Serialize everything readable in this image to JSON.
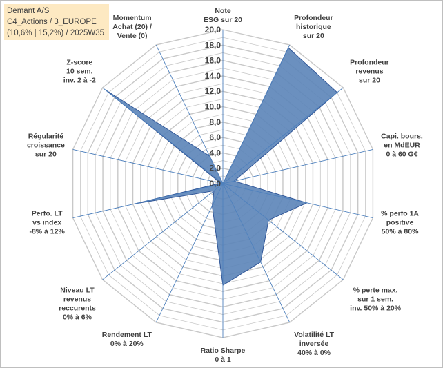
{
  "chart_data": {
    "type": "radar",
    "title_lines": [
      "Demant A/S",
      "C4_Actions / 3_EUROPE",
      "(10,6% | 15,2%) / 2025W35"
    ],
    "r_ticks": [
      "0,0",
      "2,0",
      "4,0",
      "6,0",
      "8,0",
      "10,0",
      "12,0",
      "14,0",
      "16,0",
      "18,0",
      "20,0"
    ],
    "rlim": [
      0,
      20
    ],
    "grid": true,
    "colors": {
      "fill": "#5b84b8",
      "stroke": "#2f5597",
      "grid": "#c8c8c8",
      "spoke": "#4f81bd"
    },
    "axes": [
      {
        "label": [
          "Note",
          "ESG sur 20"
        ],
        "value": 0.0
      },
      {
        "label": [
          "Profondeur",
          "historique",
          "sur 20"
        ],
        "value": 19.6
      },
      {
        "label": [
          "Profondeur",
          "revenus",
          "sur 20"
        ],
        "value": 19.0
      },
      {
        "label": [
          "Capi. bours.",
          "en MdEUR",
          "0 à 60 G€"
        ],
        "value": 1.5
      },
      {
        "label": [
          "% perfo 1A",
          "positive",
          "50% à 80%"
        ],
        "value": 11.2
      },
      {
        "label": [
          "% perte max.",
          "sur 1 sem.",
          "inv. 50% à 20%"
        ],
        "value": 7.6
      },
      {
        "label": [
          "Volatilité LT",
          "inversée",
          "40% à 0%"
        ],
        "value": 11.3
      },
      {
        "label": [
          "Ratio Sharpe",
          "0 à 1"
        ],
        "value": 13.2
      },
      {
        "label": [
          "Rendement LT",
          "0% à 20%"
        ],
        "value": 3.2
      },
      {
        "label": [
          "Niveau LT",
          "revenus",
          "reccurents",
          "0% à 6%"
        ],
        "value": 1.5
      },
      {
        "label": [
          "Perfo. LT",
          "vs index",
          "-8% à 12%"
        ],
        "value": 11.8
      },
      {
        "label": [
          "Régularité",
          "croissance",
          "sur 20"
        ],
        "value": 0.3
      },
      {
        "label": [
          "Z-score",
          "10 sem.",
          "inv. 2 à -2"
        ],
        "value": 19.6
      },
      {
        "label": [
          "Momentum",
          "Achat (20) /",
          "Vente (0)"
        ],
        "value": 4.0
      }
    ]
  }
}
